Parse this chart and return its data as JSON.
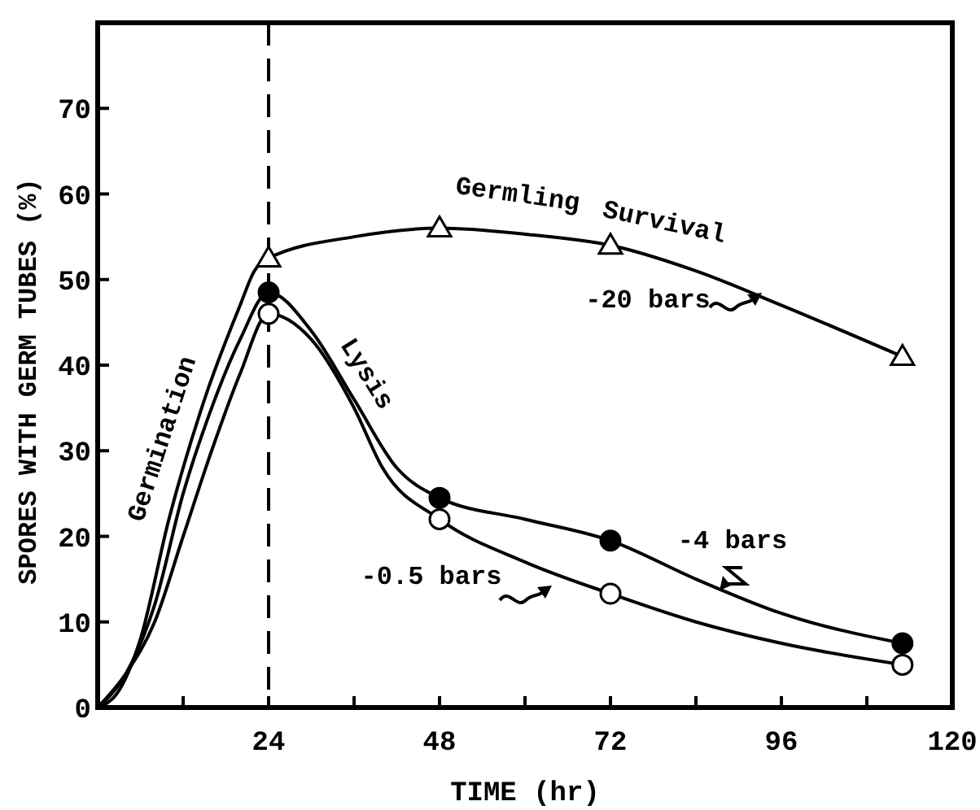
{
  "chart_data": {
    "type": "line",
    "xlabel": "TIME (hr)",
    "ylabel": "SPORES WITH GERM TUBES (%)",
    "xlim": [
      0,
      120
    ],
    "ylim": [
      0,
      80
    ],
    "xticks": [
      {
        "value": 12,
        "label": null
      },
      24,
      {
        "value": 36,
        "label": null
      },
      48,
      {
        "value": 60,
        "label": null
      },
      72,
      {
        "value": 84,
        "label": null
      },
      96,
      {
        "value": 108,
        "label": null
      },
      120
    ],
    "yticks": [
      0,
      10,
      20,
      30,
      40,
      50,
      60,
      70
    ],
    "grid": false,
    "line_style": "solid",
    "marker": "none",
    "ref_lines": [
      {
        "axis": "x",
        "value": 24,
        "line_style": "dashed",
        "color": "#000000"
      }
    ],
    "series": [
      {
        "color": "#000000",
        "x": [
          0,
          3,
          6,
          10,
          15,
          20,
          22,
          24,
          36,
          48,
          60,
          72,
          84,
          96,
          113
        ],
        "values": [
          0,
          2,
          8,
          22,
          36,
          47,
          51,
          52.5,
          55,
          56,
          55.3,
          54,
          51,
          47,
          41
        ]
      },
      {
        "color": "#000000",
        "x": [
          0,
          4,
          8,
          12,
          16,
          20,
          24,
          30,
          36,
          42,
          48,
          60,
          72,
          84,
          96,
          113
        ],
        "values": [
          0,
          4,
          12,
          25,
          35,
          43,
          48.5,
          44,
          36,
          28,
          24.5,
          22,
          19.5,
          15,
          11,
          7.5
        ]
      },
      {
        "color": "#000000",
        "x": [
          0,
          4,
          8,
          12,
          16,
          20,
          24,
          30,
          36,
          40,
          48,
          60,
          72,
          84,
          96,
          113
        ],
        "values": [
          0,
          4,
          10,
          20,
          30,
          39,
          46,
          43,
          35,
          28,
          22,
          17,
          13.3,
          10,
          7.5,
          5
        ]
      },
      {
        "type": "scatter",
        "marker": "triangle",
        "color": "#ffffff",
        "x": [
          24,
          48,
          72,
          113
        ],
        "values": [
          52.5,
          56,
          54,
          41
        ]
      },
      {
        "type": "scatter",
        "marker": "circle",
        "color": "#000000",
        "x": [
          24,
          48,
          72,
          113
        ],
        "values": [
          48.5,
          24.5,
          19.5,
          7.5
        ]
      },
      {
        "type": "scatter",
        "marker": "circle",
        "color": "#ffffff",
        "x": [
          24,
          48,
          72,
          113
        ],
        "values": [
          46,
          22,
          13.3,
          5
        ]
      }
    ],
    "annotations": [
      "Germination",
      "Lysis",
      "Germling",
      "Survival",
      "-20 bars",
      "-4 bars",
      "-0.5 bars"
    ]
  }
}
